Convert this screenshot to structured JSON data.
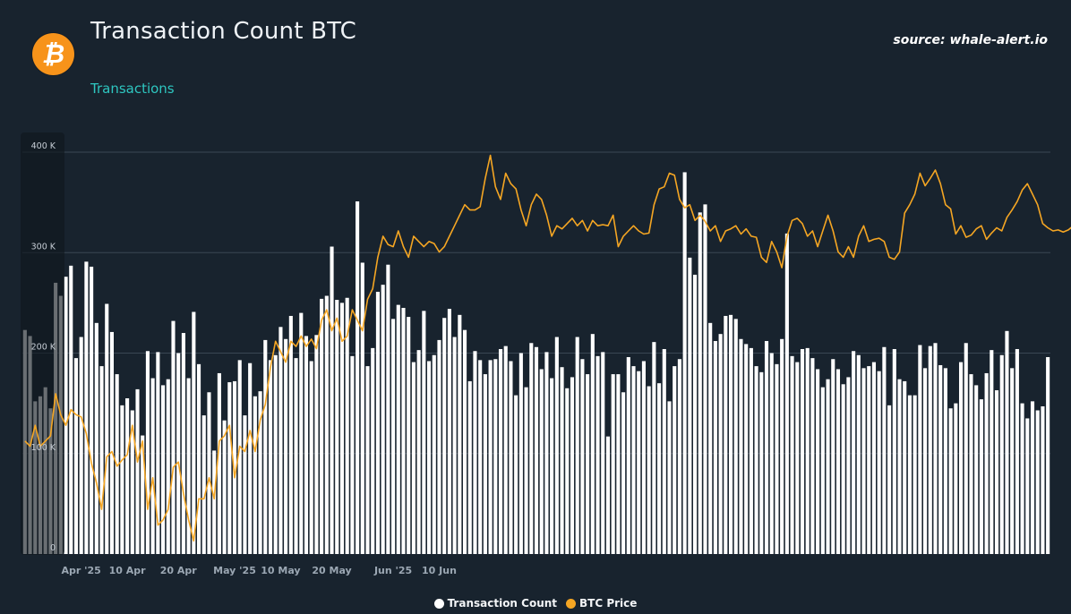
{
  "header": {
    "title": "Transaction Count BTC",
    "subtitle": "Transactions",
    "source": "source: whale-alert.io",
    "logo_glyph": "₿",
    "logo_icon": "bitcoin-logo-icon"
  },
  "colors": {
    "background": "#18232e",
    "bars": "#ffffff",
    "price_line": "#f5a623",
    "subtitle": "#2ec6c0",
    "grid": "#3a4754"
  },
  "chart_data": {
    "type": "bar",
    "x_start": "2025-03-21",
    "x_end": "2025-06-19",
    "x_ticks": [
      {
        "date": "2025-04-01",
        "label": "Apr '25"
      },
      {
        "date": "2025-04-10",
        "label": "10 Apr"
      },
      {
        "date": "2025-04-20",
        "label": "20 Apr"
      },
      {
        "date": "2025-05-01",
        "label": "May '25"
      },
      {
        "date": "2025-05-10",
        "label": "10 May"
      },
      {
        "date": "2025-05-20",
        "label": "20 May"
      },
      {
        "date": "2025-06-01",
        "label": "Jun '25"
      },
      {
        "date": "2025-06-10",
        "label": "10 Jun"
      }
    ],
    "y_ticks": [
      {
        "value": 0,
        "label": "0"
      },
      {
        "value": 100000,
        "label": "100 K"
      },
      {
        "value": 200000,
        "label": "200 K"
      },
      {
        "value": 300000,
        "label": "300 K"
      },
      {
        "value": 400000,
        "label": "400 K"
      }
    ],
    "ylim": [
      0,
      400000
    ],
    "grid": "horizontal",
    "legend_position": "bottom-center",
    "series": [
      {
        "name": "Transaction Count",
        "type": "bar",
        "color": "#ffffff",
        "values": [
          223000,
          217000,
          152000,
          157000,
          166000,
          145000,
          270000,
          257000,
          276000,
          287000,
          195000,
          216000,
          291000,
          286000,
          230000,
          187000,
          249000,
          221000,
          179000,
          148000,
          155000,
          143000,
          164000,
          118000,
          202000,
          175000,
          201000,
          168000,
          174000,
          232000,
          200000,
          220000,
          175000,
          241000,
          189000,
          138000,
          161000,
          103000,
          180000,
          133000,
          171000,
          172000,
          193000,
          138000,
          190000,
          157000,
          162000,
          213000,
          193000,
          198000,
          226000,
          214000,
          237000,
          195000,
          240000,
          217000,
          192000,
          218000,
          254000,
          257000,
          306000,
          253000,
          250000,
          255000,
          197000,
          351000,
          290000,
          187000,
          205000,
          261000,
          268000,
          288000,
          234000,
          248000,
          245000,
          236000,
          191000,
          203000,
          242000,
          192000,
          198000,
          213000,
          235000,
          244000,
          216000,
          238000,
          223000,
          172000,
          202000,
          193000,
          179000,
          193000,
          194000,
          204000,
          207000,
          192000,
          158000,
          200000,
          166000,
          210000,
          206000,
          184000,
          201000,
          175000,
          216000,
          186000,
          165000,
          176000,
          216000,
          194000,
          179000,
          219000,
          197000,
          201000,
          117000,
          179000,
          179000,
          161000,
          196000,
          187000,
          182000,
          192000,
          167000,
          211000,
          170000,
          204000,
          152000,
          187000,
          194000,
          380000,
          295000,
          278000,
          340000,
          348000,
          230000,
          212000,
          219000,
          237000,
          238000,
          234000,
          214000,
          209000,
          205000,
          187000,
          181000,
          212000,
          200000,
          189000,
          214000,
          319000,
          197000,
          191000,
          204000,
          205000,
          195000,
          184000,
          166000,
          174000,
          194000,
          184000,
          169000,
          176000,
          202000,
          198000,
          185000,
          187000,
          191000,
          182000,
          206000,
          148000,
          204000,
          174000,
          172000,
          158000,
          158000,
          208000,
          185000,
          207000,
          210000,
          188000,
          185000,
          145000,
          150000,
          191000,
          210000,
          179000,
          168000,
          154000,
          180000,
          203000,
          163000,
          198000,
          222000,
          185000,
          204000,
          150000,
          135000,
          152000,
          143000,
          147000,
          196000
        ],
        "color_note": "white"
      },
      {
        "name": "BTC Price",
        "type": "line",
        "color": "#f5a623",
        "values": [
          84500,
          84000,
          86000,
          84000,
          84500,
          85000,
          89000,
          87000,
          86000,
          87500,
          87000,
          86800,
          85200,
          82400,
          80500,
          78000,
          83000,
          83500,
          82100,
          82700,
          83200,
          86000,
          82500,
          84500,
          78000,
          81000,
          76500,
          77000,
          78000,
          82000,
          82500,
          79500,
          77000,
          75000,
          79000,
          79000,
          81000,
          79000,
          84500,
          85000,
          86000,
          81000,
          84000,
          83500,
          85500,
          83500,
          86500,
          88000,
          91500,
          94000,
          93000,
          92000,
          94000,
          93500,
          94500,
          93500,
          94200,
          93300,
          96000,
          97000,
          95000,
          96200,
          94000,
          94500,
          97000,
          96000,
          95000,
          98000,
          99000,
          102000,
          104000,
          103200,
          103000,
          104500,
          103000,
          102000,
          104000,
          103500,
          103000,
          103500,
          103300,
          102500,
          103000,
          104000,
          105000,
          106000,
          107000,
          106500,
          106500,
          106800,
          109500,
          111700,
          108700,
          107500,
          110000,
          109000,
          108500,
          106500,
          105000,
          107000,
          108000,
          107500,
          106000,
          104000,
          105000,
          104700,
          105200,
          105700,
          105000,
          105500,
          104500,
          105500,
          105000,
          105100,
          105000,
          106000,
          103000,
          104000,
          104500,
          105000,
          104500,
          104200,
          104300,
          107000,
          108500,
          108700,
          110000,
          109800,
          107500,
          106700,
          107000,
          105500,
          106000,
          105400,
          104500,
          105000,
          103500,
          104500,
          104700,
          105000,
          104200,
          104700,
          104000,
          103900,
          102000,
          101500,
          103500,
          102500,
          101000,
          104000,
          105500,
          105700,
          105200,
          104000,
          104500,
          103000,
          104500,
          106000,
          104500,
          102500,
          102000,
          103000,
          102000,
          104000,
          105000,
          103500,
          103700,
          103800,
          103500,
          102000,
          101800,
          102500,
          106200,
          107000,
          108000,
          110000,
          108800,
          109500,
          110300,
          109000,
          107000,
          106600,
          104200,
          105000,
          103900,
          104100,
          104700,
          105000,
          103700,
          104300,
          104800,
          104500,
          105800,
          106500,
          107300,
          108400,
          109000,
          108000,
          107000,
          105200,
          104800,
          104500,
          104600,
          104400,
          104600,
          105000,
          105500,
          106500,
          107200,
          108000,
          106500,
          105500,
          104500,
          104200,
          103300,
          103800,
          104400,
          104000,
          104300,
          104600,
          104800,
          105100,
          105700,
          106000,
          106300
        ]
      }
    ],
    "legend": [
      "Transaction Count",
      "BTC Price"
    ]
  }
}
